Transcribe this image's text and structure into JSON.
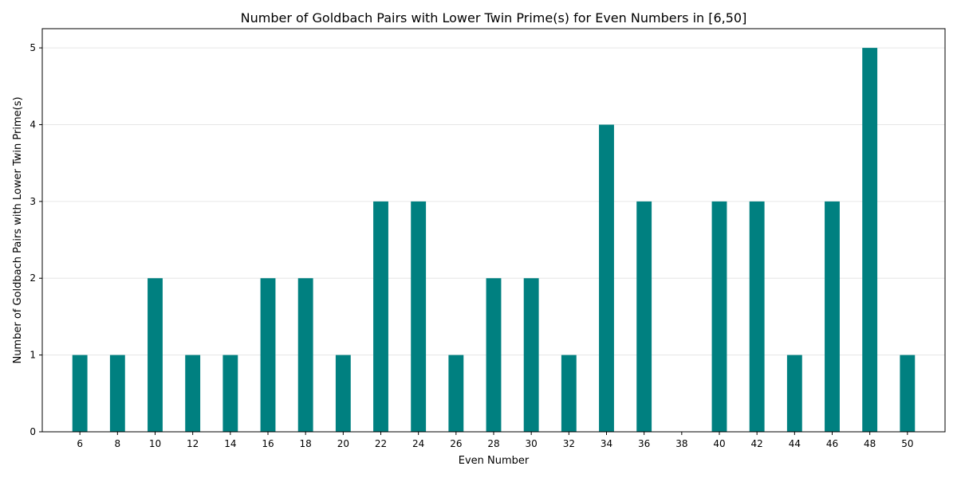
{
  "chart_data": {
    "type": "bar",
    "title": "Number of Goldbach Pairs with Lower Twin Prime(s) for Even Numbers in [6,50]",
    "xlabel": "Even Number",
    "ylabel": "Number of Goldbach Pairs with Lower Twin Prime(s)",
    "categories": [
      "6",
      "8",
      "10",
      "12",
      "14",
      "16",
      "18",
      "20",
      "22",
      "24",
      "26",
      "28",
      "30",
      "32",
      "34",
      "36",
      "38",
      "40",
      "42",
      "44",
      "46",
      "48",
      "50"
    ],
    "values": [
      1,
      1,
      2,
      1,
      1,
      2,
      2,
      1,
      3,
      3,
      1,
      2,
      2,
      1,
      4,
      3,
      0,
      3,
      3,
      1,
      3,
      5,
      1
    ],
    "ylim": [
      0,
      5.25
    ],
    "yticks": [
      0,
      1,
      2,
      3,
      4,
      5
    ],
    "grid": "y",
    "bar_color": "#008080"
  }
}
